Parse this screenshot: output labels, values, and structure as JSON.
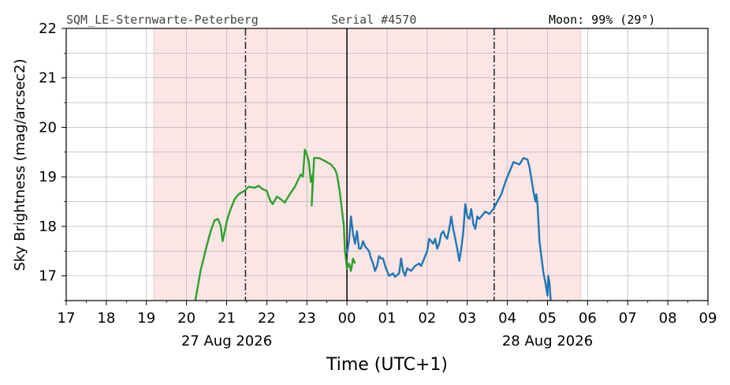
{
  "header": {
    "station": "SQM_LE-Sternwarte-Peterberg",
    "serial": "Serial #4570",
    "moon": "Moon: 99% (29°)"
  },
  "chart_data": {
    "type": "line",
    "ylabel": "Sky Brightness (mag/arcsec2)",
    "xlabel": "Time (UTC+1)",
    "x_unit": "hours since 27 Aug 2026 17:00 local",
    "xlim": [
      17,
      33
    ],
    "ylim": [
      16.5,
      22
    ],
    "x_tick_labels": [
      "17",
      "18",
      "19",
      "20",
      "21",
      "22",
      "23",
      "00",
      "01",
      "02",
      "03",
      "04",
      "05",
      "06",
      "07",
      "08",
      "09"
    ],
    "y_ticks": [
      17,
      18,
      19,
      20,
      21,
      22
    ],
    "date_labels": [
      {
        "text": "27 Aug 2026",
        "x": 21
      },
      {
        "text": "28 Aug 2026",
        "x": 29
      }
    ],
    "grid": true,
    "night_band": {
      "from": 19.18,
      "to": 29.83,
      "color": "#fbe5e5"
    },
    "twilight_lines": [
      21.47,
      27.67
    ],
    "midnight_line": 24,
    "series": [
      {
        "color": "#2ca02c",
        "points": [
          [
            20.22,
            16.5
          ],
          [
            20.35,
            17.1
          ],
          [
            20.5,
            17.6
          ],
          [
            20.6,
            17.9
          ],
          [
            20.7,
            18.12
          ],
          [
            20.78,
            18.15
          ],
          [
            20.85,
            18.02
          ],
          [
            20.9,
            17.7
          ],
          [
            20.95,
            17.9
          ],
          [
            21.02,
            18.15
          ],
          [
            21.1,
            18.35
          ],
          [
            21.2,
            18.55
          ],
          [
            21.3,
            18.65
          ],
          [
            21.45,
            18.72
          ],
          [
            21.55,
            18.8
          ],
          [
            21.7,
            18.78
          ],
          [
            21.8,
            18.82
          ],
          [
            21.9,
            18.75
          ],
          [
            22.0,
            18.72
          ],
          [
            22.05,
            18.6
          ],
          [
            22.1,
            18.5
          ],
          [
            22.15,
            18.45
          ],
          [
            22.25,
            18.6
          ],
          [
            22.35,
            18.55
          ],
          [
            22.45,
            18.48
          ],
          [
            22.55,
            18.62
          ],
          [
            22.7,
            18.8
          ],
          [
            22.85,
            19.05
          ],
          [
            22.9,
            19.0
          ],
          [
            22.95,
            19.55
          ],
          [
            23.0,
            19.45
          ],
          [
            23.05,
            19.3
          ],
          [
            23.1,
            18.9
          ],
          [
            23.15,
            19.05
          ],
          [
            23.12,
            18.42
          ],
          [
            23.18,
            19.38
          ],
          [
            23.3,
            19.38
          ],
          [
            23.45,
            19.32
          ],
          [
            23.6,
            19.25
          ],
          [
            23.7,
            19.15
          ],
          [
            23.75,
            19.05
          ],
          [
            23.82,
            18.7
          ],
          [
            23.88,
            18.3
          ],
          [
            23.92,
            18.02
          ],
          [
            23.95,
            17.5
          ],
          [
            23.98,
            17.3
          ],
          [
            24.0,
            17.15
          ],
          [
            24.05,
            17.25
          ],
          [
            24.1,
            17.1
          ],
          [
            24.15,
            17.35
          ],
          [
            24.2,
            17.25
          ]
        ]
      },
      {
        "color": "#1f77b4",
        "points": [
          [
            24.0,
            17.45
          ],
          [
            24.05,
            17.7
          ],
          [
            24.1,
            18.2
          ],
          [
            24.15,
            17.85
          ],
          [
            24.2,
            17.65
          ],
          [
            24.25,
            17.9
          ],
          [
            24.3,
            17.55
          ],
          [
            24.35,
            17.55
          ],
          [
            24.4,
            17.7
          ],
          [
            24.45,
            17.6
          ],
          [
            24.55,
            17.5
          ],
          [
            24.6,
            17.35
          ],
          [
            24.65,
            17.25
          ],
          [
            24.7,
            17.1
          ],
          [
            24.75,
            17.2
          ],
          [
            24.8,
            17.4
          ],
          [
            24.85,
            17.35
          ],
          [
            24.9,
            17.35
          ],
          [
            24.95,
            17.2
          ],
          [
            25.0,
            17.1
          ],
          [
            25.05,
            17.0
          ],
          [
            25.15,
            17.05
          ],
          [
            25.2,
            16.98
          ],
          [
            25.3,
            17.05
          ],
          [
            25.35,
            17.35
          ],
          [
            25.4,
            17.1
          ],
          [
            25.45,
            17.0
          ],
          [
            25.5,
            17.15
          ],
          [
            25.6,
            17.1
          ],
          [
            25.7,
            17.2
          ],
          [
            25.8,
            17.25
          ],
          [
            25.85,
            17.2
          ],
          [
            25.9,
            17.3
          ],
          [
            26.0,
            17.5
          ],
          [
            26.05,
            17.75
          ],
          [
            26.1,
            17.7
          ],
          [
            26.15,
            17.65
          ],
          [
            26.2,
            17.75
          ],
          [
            26.25,
            17.55
          ],
          [
            26.3,
            17.65
          ],
          [
            26.35,
            17.85
          ],
          [
            26.4,
            17.9
          ],
          [
            26.45,
            17.8
          ],
          [
            26.5,
            17.75
          ],
          [
            26.55,
            17.95
          ],
          [
            26.6,
            18.2
          ],
          [
            26.65,
            17.95
          ],
          [
            26.7,
            17.75
          ],
          [
            26.75,
            17.55
          ],
          [
            26.8,
            17.3
          ],
          [
            26.85,
            17.55
          ],
          [
            26.9,
            17.9
          ],
          [
            26.95,
            18.45
          ],
          [
            27.0,
            18.2
          ],
          [
            27.05,
            18.15
          ],
          [
            27.1,
            18.35
          ],
          [
            27.15,
            18.05
          ],
          [
            27.2,
            17.95
          ],
          [
            27.25,
            18.2
          ],
          [
            27.3,
            18.15
          ],
          [
            27.35,
            18.2
          ],
          [
            27.45,
            18.3
          ],
          [
            27.55,
            18.25
          ],
          [
            27.65,
            18.35
          ],
          [
            27.75,
            18.5
          ],
          [
            27.85,
            18.65
          ],
          [
            27.95,
            18.9
          ],
          [
            28.05,
            19.1
          ],
          [
            28.15,
            19.3
          ],
          [
            28.3,
            19.25
          ],
          [
            28.4,
            19.38
          ],
          [
            28.5,
            19.35
          ],
          [
            28.55,
            19.2
          ],
          [
            28.6,
            18.95
          ],
          [
            28.65,
            18.7
          ],
          [
            28.7,
            18.5
          ],
          [
            28.72,
            18.65
          ],
          [
            28.75,
            18.45
          ],
          [
            28.8,
            17.7
          ],
          [
            28.9,
            17.05
          ],
          [
            28.95,
            16.85
          ],
          [
            29.0,
            16.6
          ],
          [
            29.02,
            17.0
          ],
          [
            29.05,
            16.85
          ],
          [
            29.08,
            16.5
          ]
        ]
      }
    ]
  }
}
